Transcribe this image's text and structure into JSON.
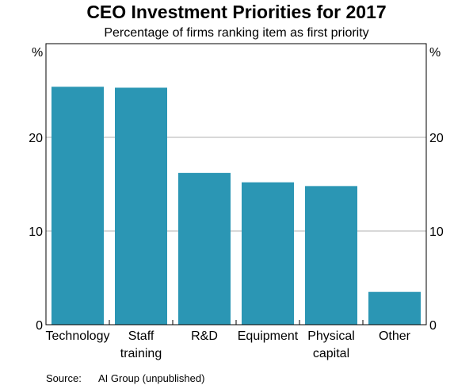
{
  "chart_data": {
    "type": "bar",
    "title": "CEO Investment Priorities for 2017",
    "subtitle": "Percentage of firms ranking item as first priority",
    "categories": [
      [
        "Technology"
      ],
      [
        "Staff",
        "training"
      ],
      [
        "R&D"
      ],
      [
        "Equipment"
      ],
      [
        "Physical",
        "capital"
      ],
      [
        "Other"
      ]
    ],
    "values": [
      25.4,
      25.3,
      16.2,
      15.2,
      14.8,
      3.5
    ],
    "ylim": [
      0,
      30
    ],
    "yticks": [
      0,
      10,
      20
    ],
    "y_unit_left": "%",
    "y_unit_right": "%",
    "grid": true,
    "colors": {
      "bar": "#2b96b4",
      "grid": "#b0b0b0",
      "axis": "#000000"
    }
  },
  "source": {
    "label": "Source:",
    "text": "AI Group (unpublished)"
  }
}
